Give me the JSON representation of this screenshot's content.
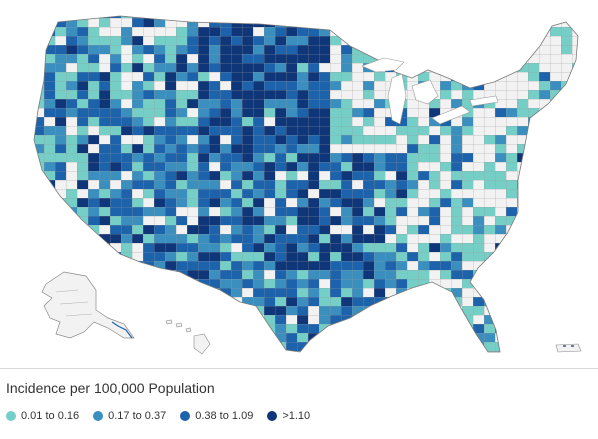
{
  "legend": {
    "title": "Incidence per 100,000 Population",
    "items": [
      {
        "label": "0.01 to 0.16",
        "color": "#76cfc6"
      },
      {
        "label": "0.17 to 0.37",
        "color": "#3a8fbf"
      },
      {
        "label": "0.38 to 1.09",
        "color": "#1c63ab"
      },
      {
        "label": ">1.10",
        "color": "#10367a"
      }
    ]
  },
  "colors": {
    "no_data": "#f2f2f2",
    "county_border": "#9a9a9a",
    "outline": "#7a7a7a"
  }
}
